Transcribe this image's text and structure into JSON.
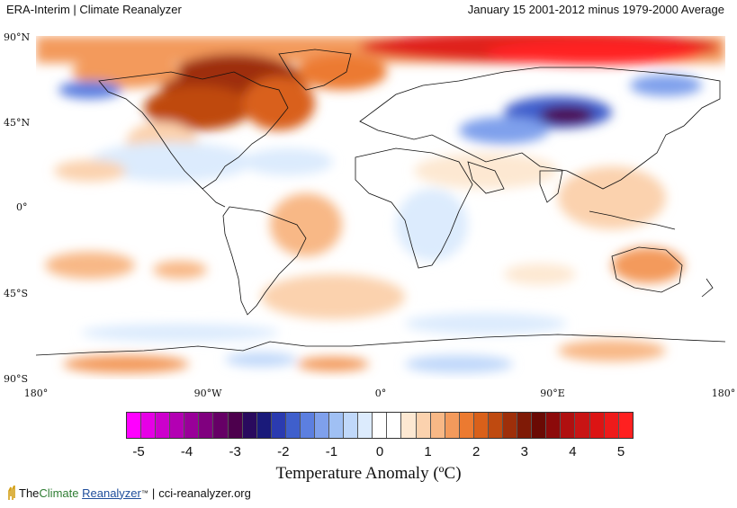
{
  "header": {
    "left": "ERA-Interim | Climate Reanalyzer",
    "right": "January 15 2001-2012 minus 1979-2000 Average"
  },
  "axes": {
    "lat_labels": [
      "90°N",
      "45°N",
      "0°",
      "45°S",
      "90°S"
    ],
    "lon_labels": [
      "180°",
      "90°W",
      "0°",
      "90°E",
      "180°"
    ]
  },
  "legend": {
    "title": "Temperature Anomaly (ºC)",
    "ticks": [
      "-5",
      "-4",
      "-3",
      "-2",
      "-1",
      "0",
      "1",
      "2",
      "3",
      "4",
      "5"
    ],
    "colors": [
      "#ff00ff",
      "#e600e6",
      "#cc00cc",
      "#b300b3",
      "#990099",
      "#80007f",
      "#660066",
      "#4d004d",
      "#2a0a5e",
      "#1a1a7a",
      "#2b3bb0",
      "#3f5fcc",
      "#5c7fe0",
      "#7fa0ec",
      "#a0c0f4",
      "#c0d8fa",
      "#dcebfd",
      "#ffffff",
      "#ffffff",
      "#fde8d2",
      "#fbd2ae",
      "#f8b886",
      "#f39a5c",
      "#ec7a30",
      "#d9601a",
      "#bf4a10",
      "#9e2f0a",
      "#7f1a06",
      "#6a0a04",
      "#8c0a0a",
      "#b01010",
      "#c81414",
      "#dc1414",
      "#ee1a1a",
      "#ff2020"
    ]
  },
  "footer": {
    "brand_prefix": "The ",
    "brand_climate": "Climate",
    "brand_reanalyzer": "Reanalyzer",
    "brand_tm": "™",
    "sep": "|",
    "url": "cci-reanalyzer.org"
  }
}
